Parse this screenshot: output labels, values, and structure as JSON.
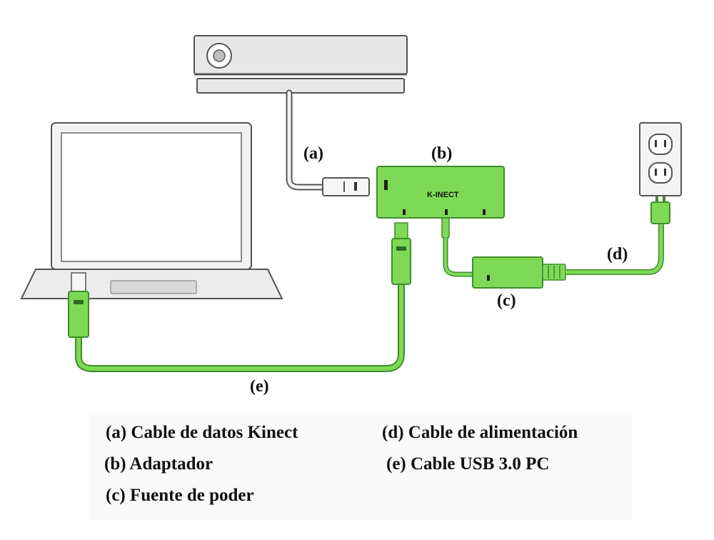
{
  "device_brand": "K-INECT",
  "labels": {
    "a": "(a)",
    "b": "(b)",
    "c": "(c)",
    "d": "(d)",
    "e": "(e)"
  },
  "legend": [
    "(a) Cable de datos Kinect",
    "(b) Adaptador",
    "(c) Fuente de poder",
    "(d) Cable de alimentación",
    "(e) Cable USB 3.0 PC"
  ],
  "colors": {
    "accent_green": "#7ED957",
    "dark_green": "#3E8E2A",
    "device_gray": "#e6e6e6",
    "outline": "#555555"
  }
}
